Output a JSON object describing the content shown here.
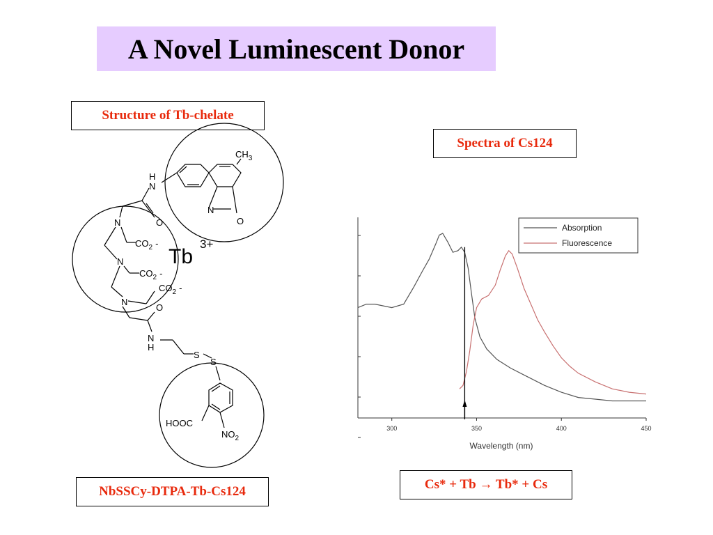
{
  "slide": {
    "title": "A Novel Luminescent Donor",
    "label_structure": "Structure of Tb-chelate",
    "label_spectra": "Spectra of Cs124",
    "label_compound": "NbSSCy-DTPA-Tb-Cs124",
    "label_equation": "Cs* + Tb  →  Tb* + Cs"
  },
  "molecule": {
    "ch3_main": "CH",
    "ch3_sub": "3",
    "h_top": "H",
    "n_amide_top": "N",
    "n_ring": "N",
    "o_ring": "O",
    "o_amide_top": "O",
    "n1": "N",
    "n2": "N",
    "n3": "N",
    "co2_1": "CO",
    "co2_2": "CO",
    "co2_3": "CO",
    "sub_2": "2",
    "charge": "-",
    "tb": "Tb",
    "tb_charge": "3+",
    "o_amide_bottom": "O",
    "n_amide_bottom": "N",
    "h_bottom": "H",
    "s1": "S",
    "s2": "S",
    "hooc": "HOOC",
    "no2_main": "NO",
    "no2_sub": "2"
  },
  "chart_data": {
    "type": "line",
    "xlabel": "Wavelength (nm)",
    "ylabel": "",
    "xlim": [
      280,
      450
    ],
    "xticks": [
      300,
      350,
      400,
      450
    ],
    "ylim": [
      0,
      1
    ],
    "legend_position": "top-right",
    "series": [
      {
        "name": "Absorption",
        "color": "#555555",
        "points": [
          [
            280,
            0.55
          ],
          [
            285,
            0.57
          ],
          [
            290,
            0.57
          ],
          [
            300,
            0.55
          ],
          [
            307,
            0.57
          ],
          [
            313,
            0.67
          ],
          [
            318,
            0.76
          ],
          [
            322,
            0.83
          ],
          [
            326,
            0.92
          ],
          [
            328,
            0.97
          ],
          [
            330,
            0.98
          ],
          [
            333,
            0.93
          ],
          [
            336,
            0.87
          ],
          [
            339,
            0.88
          ],
          [
            341,
            0.9
          ],
          [
            343,
            0.87
          ],
          [
            345,
            0.78
          ],
          [
            347,
            0.63
          ],
          [
            349,
            0.49
          ],
          [
            352,
            0.38
          ],
          [
            356,
            0.31
          ],
          [
            362,
            0.25
          ],
          [
            370,
            0.2
          ],
          [
            380,
            0.15
          ],
          [
            390,
            0.1
          ],
          [
            400,
            0.06
          ],
          [
            410,
            0.03
          ],
          [
            420,
            0.02
          ],
          [
            430,
            0.01
          ],
          [
            440,
            0.01
          ],
          [
            450,
            0.01
          ]
        ]
      },
      {
        "name": "Fluorescence",
        "color": "#c87070",
        "points": [
          [
            340,
            0.08
          ],
          [
            342,
            0.1
          ],
          [
            344,
            0.18
          ],
          [
            346,
            0.3
          ],
          [
            348,
            0.45
          ],
          [
            350,
            0.55
          ],
          [
            353,
            0.6
          ],
          [
            357,
            0.62
          ],
          [
            361,
            0.68
          ],
          [
            364,
            0.77
          ],
          [
            367,
            0.85
          ],
          [
            369,
            0.88
          ],
          [
            371,
            0.86
          ],
          [
            374,
            0.78
          ],
          [
            378,
            0.66
          ],
          [
            382,
            0.57
          ],
          [
            386,
            0.48
          ],
          [
            390,
            0.41
          ],
          [
            395,
            0.33
          ],
          [
            400,
            0.26
          ],
          [
            405,
            0.21
          ],
          [
            410,
            0.17
          ],
          [
            420,
            0.12
          ],
          [
            430,
            0.08
          ],
          [
            440,
            0.06
          ],
          [
            450,
            0.05
          ]
        ]
      }
    ],
    "marker_x": 343
  }
}
